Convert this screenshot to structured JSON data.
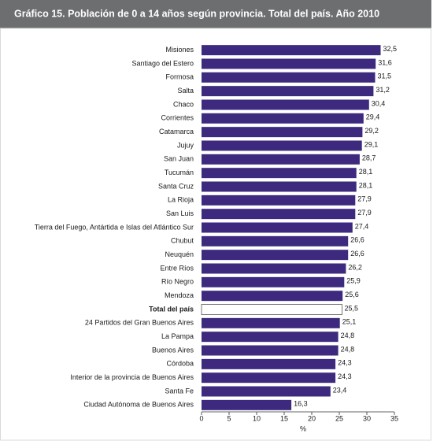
{
  "chart_data": {
    "type": "bar",
    "orientation": "horizontal",
    "title": "Gráfico 15. Población de 0 a 14 años según provincia. Total del país. Año 2010",
    "x_label": "%",
    "categories": [
      "Misiones",
      "Santiago del Estero",
      "Formosa",
      "Salta",
      "Chaco",
      "Corrientes",
      "Catamarca",
      "Jujuy",
      "San Juan",
      "Tucumán",
      "Santa Cruz",
      "La Rioja",
      "San Luis",
      "Tierra del Fuego, Antártida e Islas del Atlántico Sur",
      "Chubut",
      "Neuquén",
      "Entre Ríos",
      "Río Negro",
      "Mendoza",
      "Total del país",
      "24 Partidos del Gran Buenos Aires",
      "La Pampa",
      "Buenos Aires",
      "Córdoba",
      "Interior de la provincia de Buenos Aires",
      "Santa Fe",
      "Ciudad Autónoma de Buenos Aires"
    ],
    "values": [
      32.5,
      31.6,
      31.5,
      31.2,
      30.4,
      29.4,
      29.2,
      29.1,
      28.7,
      28.1,
      28.1,
      27.9,
      27.9,
      27.4,
      26.6,
      26.6,
      26.2,
      25.9,
      25.6,
      25.5,
      25.1,
      24.8,
      24.8,
      24.3,
      24.3,
      23.4,
      16.3
    ],
    "value_labels": [
      "32,5",
      "31,6",
      "31,5",
      "31,2",
      "30,4",
      "29,4",
      "29,2",
      "29,1",
      "28,7",
      "28,1",
      "28,1",
      "27,9",
      "27,9",
      "27,4",
      "26,6",
      "26,6",
      "26,2",
      "25,9",
      "25,6",
      "25,5",
      "25,1",
      "24,8",
      "24,8",
      "24,3",
      "24,3",
      "23,4",
      "16,3"
    ],
    "color": "#3d2a7f",
    "highlight_color": "#ffffff",
    "highlight_index": 19,
    "xlim": [
      0,
      35
    ],
    "xticks": [
      0,
      5,
      10,
      15,
      20,
      25,
      30,
      35
    ],
    "grid": false
  }
}
